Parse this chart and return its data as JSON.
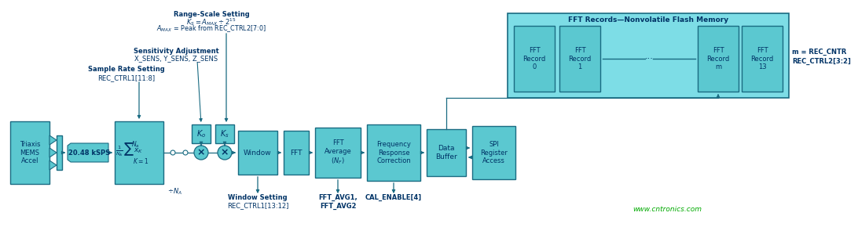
{
  "bg_color": "#ffffff",
  "box_fill": "#5BC8D0",
  "box_fill_light": "#7DE0E8",
  "box_edge": "#1A6B82",
  "fft_bg": "#6ECFDA",
  "fft_border": "#1A6B82",
  "text_dark": "#003366",
  "arrow_color": "#1A6B82",
  "watermark_color": "#00AA00",
  "title_fft_records": "FFT Records—Nonvolatile Flash Memory",
  "fft_records": [
    "FFT\nRecord\n0",
    "FFT\nRecord\n1",
    "FFT\nRecord\nm",
    "FFT\nRecord\n13"
  ],
  "m_label": "m = REC_CNTR\nREC_CTRL2[3:2]",
  "watermark": "www.cntronics.com",
  "ann_range_scale_title": "Range-Scale Setting",
  "ann_range_scale_l2": "$K_S = A_{MAX} \\div 2^{15}$",
  "ann_range_scale_l3": "$A_{MAX}$ = Peak from REC_CTRL2[7:0]",
  "ann_sensitivity_title": "Sensitivity Adjustment",
  "ann_sensitivity_l2": "X_SENS, Y_SENS, Z_SENS",
  "ann_sample_rate_title": "Sample Rate Setting",
  "ann_sample_rate_l2": "REC_CTRL1[11:8]",
  "ann_window_title": "Window Setting",
  "ann_window_l2": "REC_CTRL1[13:12]",
  "ann_fftavg_l1": "FFT_AVG1,",
  "ann_fftavg_l2": "FFT_AVG2",
  "ann_cal": "CAL_ENABLE[4]"
}
